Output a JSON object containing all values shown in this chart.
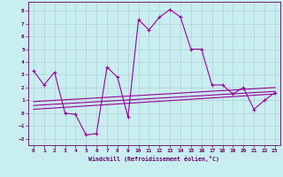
{
  "xlabel": "Windchill (Refroidissement éolien,°C)",
  "background_color": "#c8eef0",
  "line_color": "#990099",
  "xlim": [
    -0.5,
    23.5
  ],
  "ylim": [
    -2.5,
    8.7
  ],
  "xticks": [
    0,
    1,
    2,
    3,
    4,
    5,
    6,
    7,
    8,
    9,
    10,
    11,
    12,
    13,
    14,
    15,
    16,
    17,
    18,
    19,
    20,
    21,
    22,
    23
  ],
  "yticks": [
    -2,
    -1,
    0,
    1,
    2,
    3,
    4,
    5,
    6,
    7,
    8
  ],
  "main_x": [
    0,
    1,
    2,
    3,
    4,
    5,
    6,
    7,
    8,
    9,
    10,
    11,
    12,
    13,
    14,
    15,
    16,
    17,
    18,
    19,
    20,
    21,
    22,
    23
  ],
  "main_y": [
    3.3,
    2.2,
    3.2,
    0.0,
    -0.1,
    -1.7,
    -1.6,
    3.6,
    2.8,
    -0.3,
    7.3,
    6.5,
    7.5,
    8.1,
    7.5,
    5.0,
    5.0,
    2.2,
    2.2,
    1.5,
    2.0,
    0.3,
    1.0,
    1.6
  ],
  "trend1_x": [
    0,
    23
  ],
  "trend1_y": [
    0.9,
    2.0
  ],
  "trend2_x": [
    0,
    23
  ],
  "trend2_y": [
    0.6,
    1.7
  ],
  "trend3_x": [
    0,
    23
  ],
  "trend3_y": [
    0.3,
    1.5
  ]
}
